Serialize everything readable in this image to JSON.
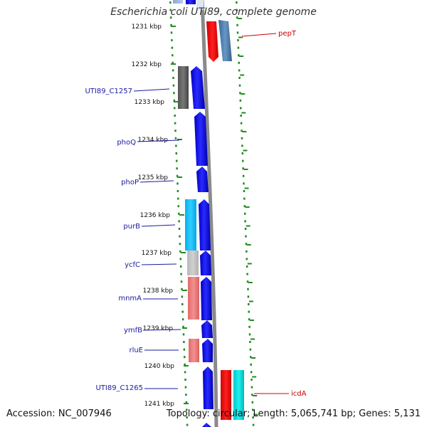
{
  "title": "Escherichia coli UTI89, complete genome",
  "accession": "Accession: NC_007946",
  "topology": "Topology: circular; Length: 5,065,741 bp; Genes: 5,131",
  "colors": {
    "ruler_tick": "#228B22",
    "label_blue": "#1a1aa0",
    "label_red": "#cc0000",
    "cds_forward": "#0000ee",
    "backbone": "#8a8a8a"
  },
  "ruler": [
    {
      "label": "1231 kbp"
    },
    {
      "label": "1232 kbp"
    },
    {
      "label": "1233 kbp"
    },
    {
      "label": "1234 kbp"
    },
    {
      "label": "1235 kbp"
    },
    {
      "label": "1236 kbp"
    },
    {
      "label": "1237 kbp"
    },
    {
      "label": "1238 kbp"
    },
    {
      "label": "1239 kbp"
    },
    {
      "label": "1240 kbp"
    },
    {
      "label": "1241 kbp"
    }
  ],
  "left_labels": [
    {
      "text": "UTI89_C1257"
    },
    {
      "text": "phoQ"
    },
    {
      "text": "phoP"
    },
    {
      "text": "purB"
    },
    {
      "text": "ycfC"
    },
    {
      "text": "mnmA"
    },
    {
      "text": "ymfB"
    },
    {
      "text": "rluE"
    },
    {
      "text": "UTI89_C1265"
    }
  ],
  "right_labels": [
    {
      "text": "pepT"
    },
    {
      "text": "icdA"
    }
  ]
}
